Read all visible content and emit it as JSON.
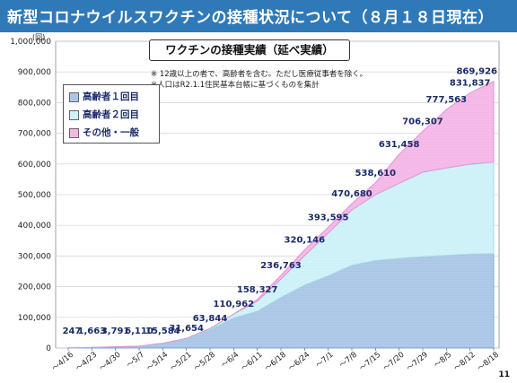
{
  "header": {
    "title": "新型コロナウイルスワクチンの接種状況について（８月１８日現在）"
  },
  "box_title": "ワクチンの接種実績（延べ実績）",
  "notes": [
    "※ 12歳以上の者で、高齢者を含む。ただし医療従事者を除く。",
    "※人口はR2.1.1住民基本台帳に基づくものを集計"
  ],
  "page_number": "11",
  "colors": {
    "header": "#2f79b8",
    "series_elderly_1": "#a9c6e6",
    "series_elderly_2": "#ccf1f7",
    "series_other": "#f4b6e6",
    "label": "#1b2b6b"
  },
  "chart_data": {
    "type": "area",
    "stacked": true,
    "y_unit": "(回)",
    "ylim": [
      0,
      1000000
    ],
    "y_ticks": [
      "0",
      "100,000",
      "200,000",
      "300,000",
      "400,000",
      "500,000",
      "600,000",
      "700,000",
      "800,000",
      "900,000",
      "1,000,000"
    ],
    "grid": true,
    "legend_position": "top-left",
    "categories": [
      "～4/16",
      "～4/23",
      "～4/30",
      "～5/7",
      "～5/14",
      "～5/21",
      "～5/28",
      "～6/4",
      "～6/11",
      "～6/18",
      "～6/24",
      "～7/1",
      "～7/8",
      "～7/15",
      "～7/20",
      "～7/29",
      "～8/5",
      "～8/12",
      "～8/18"
    ],
    "series": [
      {
        "name": "高齢者１回目",
        "values": [
          247,
          1663,
          3791,
          6110,
          15000,
          30000,
          60000,
          98000,
          120000,
          165000,
          205000,
          235000,
          270000,
          285000,
          292000,
          298000,
          302000,
          306000,
          308000
        ]
      },
      {
        "name": "高齢者２回目",
        "values": [
          0,
          0,
          0,
          0,
          500,
          1500,
          3500,
          12500,
          33000,
          60000,
          96000,
          140000,
          180000,
          215000,
          245000,
          275000,
          285000,
          293000,
          298000
        ]
      },
      {
        "name": "その他・一般",
        "values": [
          0,
          0,
          0,
          0,
          84,
          154,
          344,
          462,
          5327,
          11763,
          19146,
          18595,
          20680,
          38610,
          94458,
          133307,
          190563,
          232837,
          263926
        ]
      }
    ],
    "totals": [
      247,
      1663,
      3791,
      6110,
      15584,
      31654,
      63844,
      110962,
      158327,
      236763,
      320146,
      393595,
      470680,
      538610,
      631458,
      706307,
      777563,
      831837,
      869926
    ],
    "total_labels": [
      "247",
      "1,663",
      "3,791",
      "6,110",
      "15,584",
      "31,654",
      "63,844",
      "110,962",
      "158,327",
      "236,763",
      "320,146",
      "393,595",
      "470,680",
      "538,610",
      "631,458",
      "706,307",
      "777,563",
      "831,837",
      "869,926"
    ]
  }
}
